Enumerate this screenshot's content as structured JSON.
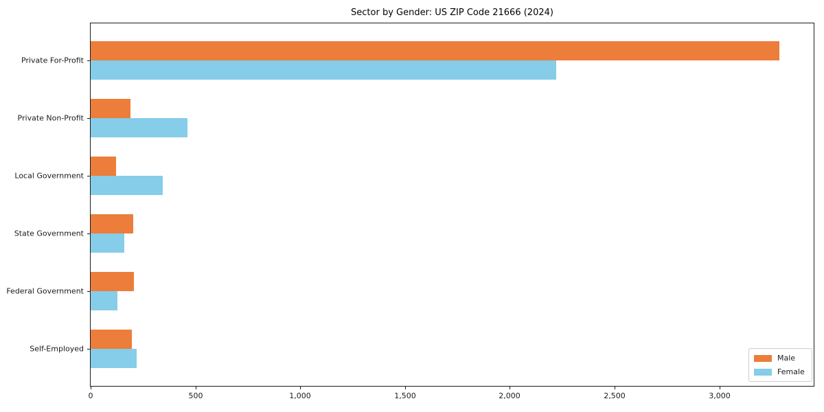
{
  "chart_data": {
    "type": "bar",
    "orientation": "horizontal",
    "title": "Sector by Gender: US ZIP Code 21666 (2024)",
    "categories": [
      "Private For-Profit",
      "Private Non-Profit",
      "Local Government",
      "State Government",
      "Federal Government",
      "Self-Employed"
    ],
    "series": [
      {
        "name": "Male",
        "color": "#ec7d3b",
        "values": [
          3285,
          190,
          122,
          204,
          206,
          198
        ]
      },
      {
        "name": "Female",
        "color": "#85cde8",
        "values": [
          2220,
          462,
          343,
          162,
          127,
          220
        ]
      }
    ],
    "xlabel": "",
    "ylabel": "",
    "xlim": [
      0,
      3450
    ],
    "x_ticks": [
      0,
      500,
      1000,
      1500,
      2000,
      2500,
      3000
    ],
    "x_tick_labels": [
      "0",
      "500",
      "1,000",
      "1,500",
      "2,000",
      "2,500",
      "3,000"
    ],
    "legend_position": "lower right",
    "grid": false,
    "background_color": "#ffffff",
    "spine_color": "#1a1a1a"
  }
}
